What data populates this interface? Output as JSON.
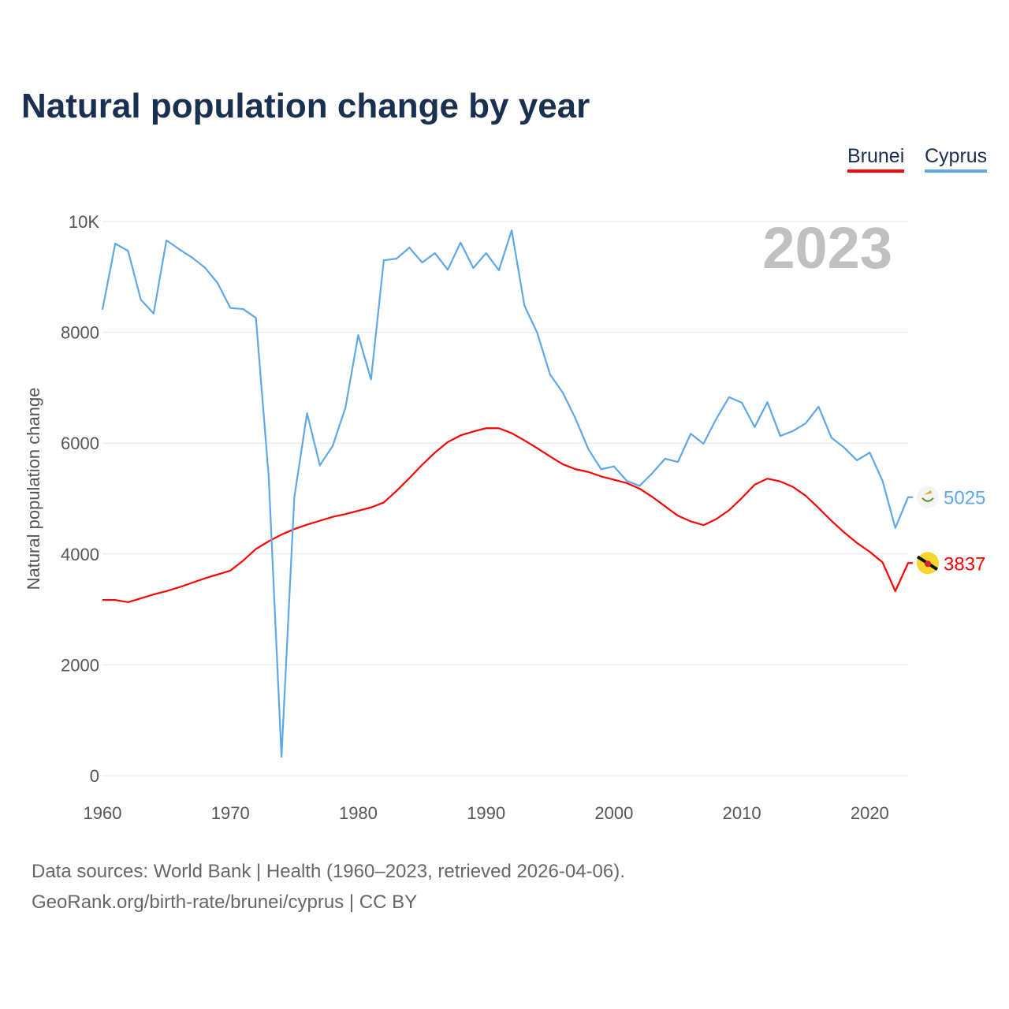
{
  "chart_data": {
    "type": "line",
    "title": "Natural population change by year",
    "xlabel": "",
    "ylabel": "Natural population change",
    "ylim": [
      0,
      10000
    ],
    "xlim": [
      1960,
      2023
    ],
    "yticks": [
      "0",
      "2000",
      "4000",
      "6000",
      "8000",
      "10K"
    ],
    "xticks": [
      "1960",
      "1970",
      "1980",
      "1990",
      "2000",
      "2010",
      "2020"
    ],
    "current_year": "2023",
    "legend": "top-right",
    "x": [
      1960,
      1961,
      1962,
      1963,
      1964,
      1965,
      1966,
      1967,
      1968,
      1969,
      1970,
      1971,
      1972,
      1973,
      1974,
      1975,
      1976,
      1977,
      1978,
      1979,
      1980,
      1981,
      1982,
      1983,
      1984,
      1985,
      1986,
      1987,
      1988,
      1989,
      1990,
      1991,
      1992,
      1993,
      1994,
      1995,
      1996,
      1997,
      1998,
      1999,
      2000,
      2001,
      2002,
      2003,
      2004,
      2005,
      2006,
      2007,
      2008,
      2009,
      2010,
      2011,
      2012,
      2013,
      2014,
      2015,
      2016,
      2017,
      2018,
      2019,
      2020,
      2021,
      2022,
      2023
    ],
    "series": [
      {
        "name": "Brunei",
        "color": "#ff0000",
        "end_label": "3837",
        "values": [
          3170,
          3170,
          3130,
          3200,
          3270,
          3330,
          3400,
          3480,
          3560,
          3630,
          3700,
          3880,
          4090,
          4230,
          4350,
          4450,
          4530,
          4600,
          4670,
          4720,
          4780,
          4840,
          4930,
          5140,
          5370,
          5610,
          5830,
          6020,
          6140,
          6210,
          6270,
          6270,
          6180,
          6050,
          5910,
          5760,
          5620,
          5530,
          5480,
          5400,
          5340,
          5280,
          5180,
          5030,
          4860,
          4690,
          4590,
          4520,
          4630,
          4790,
          5010,
          5250,
          5360,
          5310,
          5210,
          5050,
          4830,
          4600,
          4390,
          4200,
          4040,
          3850,
          3330,
          3837
        ]
      },
      {
        "name": "Cyprus",
        "color": "#5fa8e8",
        "end_label": "5025",
        "values": [
          8410,
          9600,
          9470,
          8590,
          8340,
          9660,
          9500,
          9350,
          9170,
          8890,
          8440,
          8420,
          8260,
          5390,
          340,
          5020,
          6540,
          5600,
          5950,
          6640,
          7950,
          7150,
          9300,
          9330,
          9530,
          9260,
          9430,
          9130,
          9620,
          9160,
          9430,
          9120,
          9840,
          8480,
          7990,
          7240,
          6910,
          6440,
          5890,
          5530,
          5580,
          5320,
          5230,
          5460,
          5720,
          5660,
          6170,
          5990,
          6440,
          6830,
          6730,
          6290,
          6740,
          6130,
          6220,
          6360,
          6660,
          6100,
          5920,
          5690,
          5830,
          5320,
          4470,
          5025
        ]
      }
    ]
  },
  "footer": {
    "line1": "Data sources: World Bank | Health (1960–2023, retrieved 2026-04-06).",
    "line2": "GeoRank.org/birth-rate/brunei/cyprus | CC BY"
  }
}
